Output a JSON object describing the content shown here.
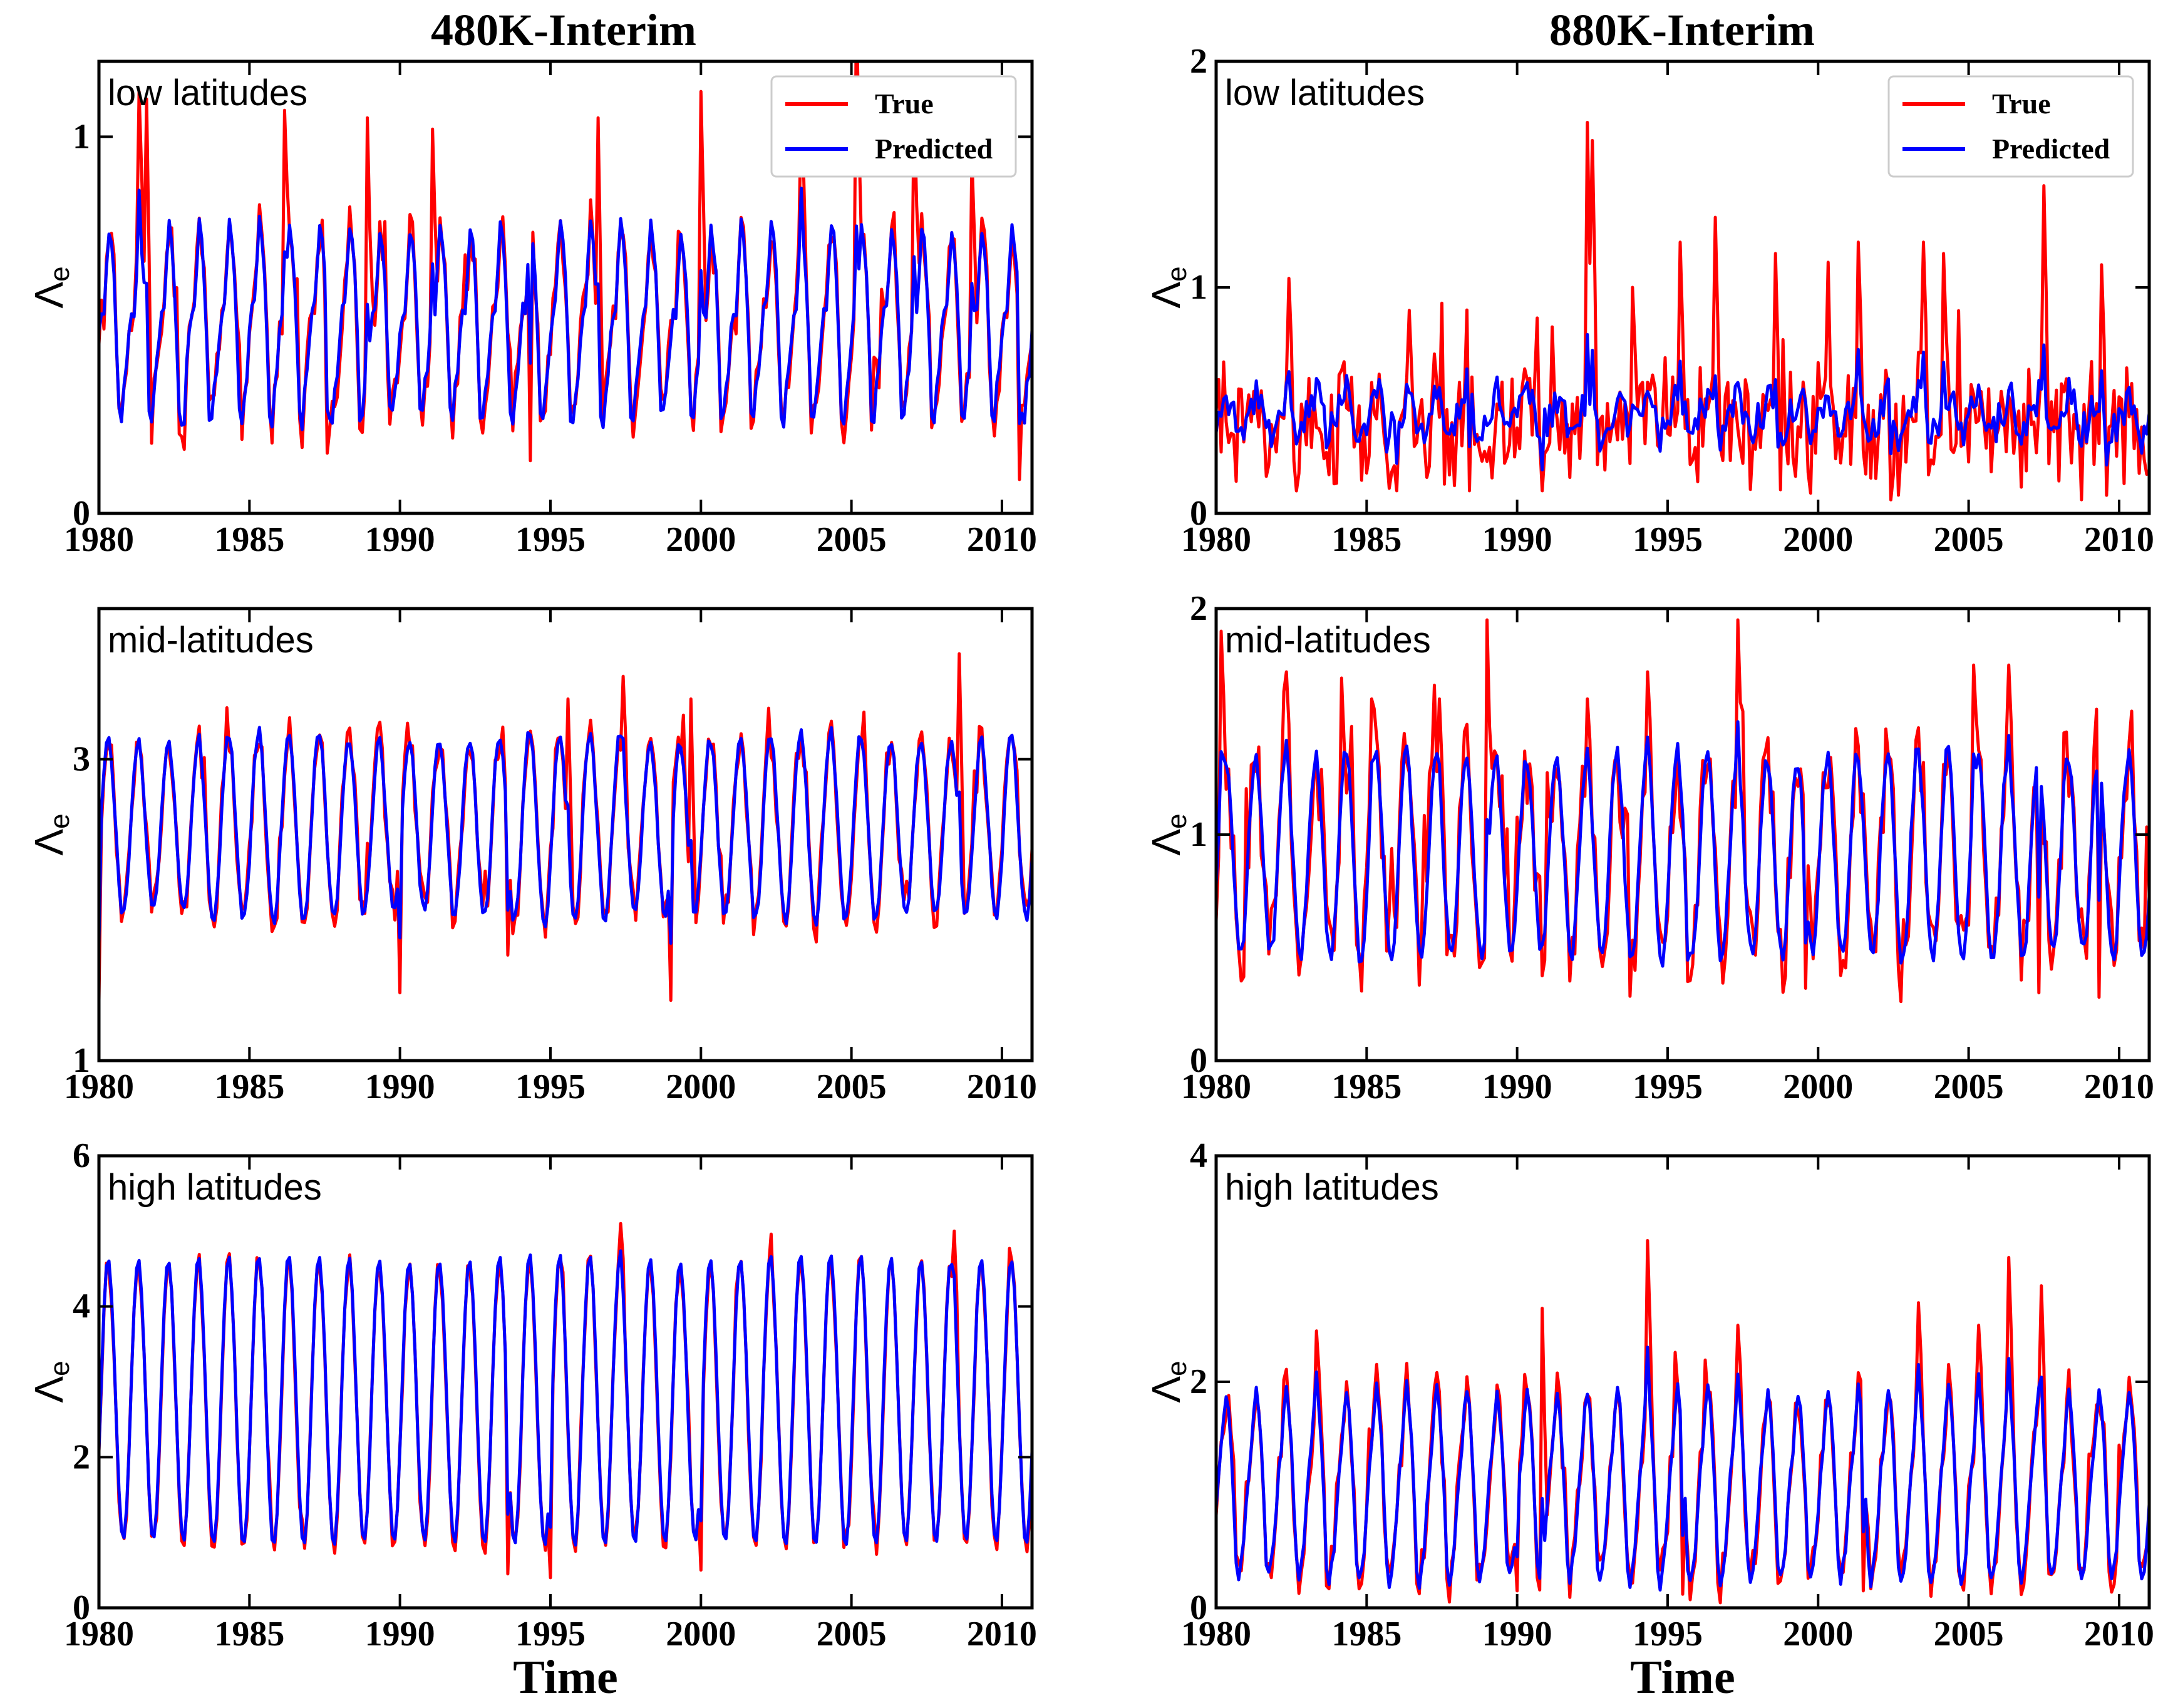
{
  "figure": {
    "columns": [
      "480K-Interim",
      "880K-Interim"
    ],
    "rows": [
      "low latitudes",
      "mid-latitudes",
      "high latitudes"
    ]
  },
  "colors": {
    "true": "#ff0000",
    "predicted": "#0000ff"
  },
  "chart_data": [
    {
      "id": "p00",
      "type": "line",
      "column_title": "480K-Interim",
      "panel_label": "low latitudes",
      "xlabel": "",
      "ylabel": "Λe",
      "ylim": [
        0,
        1.2
      ],
      "xlim": [
        1980,
        2011
      ],
      "xticks": [
        1980,
        1985,
        1990,
        1995,
        2000,
        2005,
        2010
      ],
      "yticks": [
        0,
        1
      ],
      "yticklabels": [
        "0",
        "1"
      ],
      "legend": {
        "position": "top-right",
        "entries": [
          "True",
          "Predicted"
        ]
      },
      "gen": {
        "base": 0.55,
        "amp": 0.22,
        "amp_var": 0.05,
        "pred_dip": 0.15,
        "noise": 0.06,
        "pnoise": 0.02,
        "true_offset": 0.0,
        "spikes": [
          [
            1981.3,
            1.12
          ],
          [
            1981.6,
            1.1
          ],
          [
            1986.2,
            1.07
          ],
          [
            1988.9,
            1.05
          ],
          [
            1991.1,
            1.02
          ],
          [
            1996.6,
            1.05
          ],
          [
            2000.0,
            1.12
          ],
          [
            2003.3,
            1.07
          ],
          [
            2005.2,
            1.35
          ],
          [
            2007.1,
            1.1
          ],
          [
            2009.0,
            0.95
          ]
        ],
        "dips": [
          [
            1982.8,
            0.17
          ],
          [
            1987.6,
            0.16
          ],
          [
            1994.3,
            0.14
          ],
          [
            2010.6,
            0.09
          ]
        ]
      }
    },
    {
      "id": "p01",
      "type": "line",
      "column_title": "880K-Interim",
      "panel_label": "low latitudes",
      "xlabel": "",
      "ylabel": "Λe",
      "ylim": [
        0,
        2
      ],
      "xlim": [
        1980,
        2011
      ],
      "xticks": [
        1980,
        1985,
        1990,
        1995,
        2000,
        2005,
        2010
      ],
      "yticks": [
        0,
        1,
        2
      ],
      "yticklabels": [
        "0",
        "1",
        "2"
      ],
      "legend": {
        "position": "top-right",
        "entries": [
          "True",
          "Predicted"
        ]
      },
      "gen": {
        "base": 0.45,
        "amp": 0.08,
        "amp_var": 0.04,
        "pred_dip": 0.05,
        "noise": 0.22,
        "pnoise": 0.08,
        "true_offset": -0.05,
        "spikes": [
          [
            1982.4,
            1.04
          ],
          [
            1988.3,
            0.9
          ],
          [
            1992.3,
            1.73
          ],
          [
            1992.5,
            1.65
          ],
          [
            1993.8,
            1.0
          ],
          [
            1995.4,
            1.2
          ],
          [
            1996.6,
            1.31
          ],
          [
            1998.6,
            1.15
          ],
          [
            2001.3,
            1.2
          ],
          [
            2003.5,
            1.2
          ],
          [
            2004.2,
            1.15
          ],
          [
            2007.5,
            1.45
          ],
          [
            2009.4,
            1.1
          ]
        ],
        "dips": [
          [
            1986.0,
            0.1
          ],
          [
            1988.4,
            0.1
          ],
          [
            1990.8,
            0.1
          ],
          [
            2002.4,
            0.06
          ],
          [
            2009.6,
            0.08
          ]
        ]
      }
    },
    {
      "id": "p10",
      "type": "line",
      "column_title": "480K-Interim",
      "panel_label": "mid-latitudes",
      "xlabel": "",
      "ylabel": "Λe",
      "ylim": [
        1,
        4
      ],
      "xlim": [
        1980,
        2011
      ],
      "xticks": [
        1980,
        1985,
        1990,
        1995,
        2000,
        2005,
        2010
      ],
      "yticks": [
        1,
        3
      ],
      "yticklabels": [
        "1",
        "3"
      ],
      "legend": null,
      "gen": {
        "base": 2.55,
        "amp": 0.6,
        "amp_var": 0.06,
        "pred_dip": 0.0,
        "noise": 0.12,
        "pnoise": 0.04,
        "true_offset": 0.0,
        "spikes": [
          [
            1995.6,
            3.4
          ],
          [
            1997.4,
            3.55
          ],
          [
            1999.7,
            3.4
          ],
          [
            2008.6,
            3.7
          ]
        ],
        "dips": [
          [
            1980.0,
            1.4
          ],
          [
            1990.0,
            1.45
          ],
          [
            1999.0,
            1.4
          ],
          [
            1993.6,
            1.7
          ]
        ]
      }
    },
    {
      "id": "p11",
      "type": "line",
      "column_title": "880K-Interim",
      "panel_label": "mid-latitudes",
      "xlabel": "",
      "ylabel": "Λe",
      "ylim": [
        0,
        2
      ],
      "xlim": [
        1980,
        2011
      ],
      "xticks": [
        1980,
        1985,
        1990,
        1995,
        2000,
        2005,
        2010
      ],
      "yticks": [
        0,
        1,
        2
      ],
      "yticklabels": [
        "0",
        "1",
        "2"
      ],
      "legend": null,
      "gen": {
        "base": 0.9,
        "amp": 0.45,
        "amp_var": 0.05,
        "pred_dip": 0.0,
        "noise": 0.18,
        "pnoise": 0.04,
        "true_offset": 0.0,
        "spikes": [
          [
            1980.2,
            1.9
          ],
          [
            1982.3,
            1.72
          ],
          [
            1985.2,
            1.6
          ],
          [
            1987.4,
            1.6
          ],
          [
            1989.0,
            1.95
          ],
          [
            1992.3,
            1.6
          ],
          [
            1994.3,
            1.72
          ],
          [
            1997.3,
            1.95
          ],
          [
            2005.2,
            1.75
          ],
          [
            2006.3,
            1.75
          ],
          [
            2008.2,
            1.45
          ]
        ],
        "dips": [
          [
            1995.7,
            0.35
          ],
          [
            1999.6,
            0.32
          ],
          [
            2007.3,
            0.3
          ],
          [
            2009.3,
            0.28
          ]
        ]
      }
    },
    {
      "id": "p20",
      "type": "line",
      "column_title": "480K-Interim",
      "panel_label": "high latitudes",
      "xlabel": "Time",
      "ylabel": "Λe",
      "ylim": [
        0,
        6
      ],
      "xlim": [
        1980,
        2011
      ],
      "xticks": [
        1980,
        1985,
        1990,
        1995,
        2000,
        2005,
        2010
      ],
      "yticks": [
        0,
        2,
        4,
        6
      ],
      "yticklabels": [
        "0",
        "2",
        "4",
        "6"
      ],
      "legend": null,
      "gen": {
        "base": 2.75,
        "amp": 1.9,
        "amp_var": 0.02,
        "pred_dip": 0.0,
        "noise": 0.12,
        "pnoise": 0.03,
        "true_offset": -0.05,
        "spikes": [
          [
            1997.3,
            5.1
          ],
          [
            2008.4,
            5.0
          ]
        ],
        "dips": [
          [
            1993.6,
            0.45
          ],
          [
            1995.0,
            0.4
          ],
          [
            2000.0,
            0.5
          ]
        ]
      }
    },
    {
      "id": "p21",
      "type": "line",
      "column_title": "880K-Interim",
      "panel_label": "high latitudes",
      "xlabel": "Time",
      "ylabel": "Λe",
      "ylim": [
        0,
        4
      ],
      "xlim": [
        1980,
        2011
      ],
      "xticks": [
        1980,
        1985,
        1990,
        1995,
        2000,
        2005,
        2010
      ],
      "yticks": [
        0,
        2,
        4
      ],
      "yticklabels": [
        "0",
        "2",
        "4"
      ],
      "legend": null,
      "gen": {
        "base": 1.15,
        "amp": 0.8,
        "amp_var": 0.04,
        "pred_dip": 0.25,
        "noise": 0.18,
        "pnoise": 0.05,
        "true_offset": 0.0,
        "spikes": [
          [
            1983.3,
            2.45
          ],
          [
            1990.8,
            2.65
          ],
          [
            1994.3,
            3.25
          ],
          [
            1997.3,
            2.5
          ],
          [
            2003.3,
            2.7
          ],
          [
            2005.3,
            2.5
          ],
          [
            2006.3,
            3.1
          ],
          [
            2007.4,
            2.85
          ]
        ],
        "dips": [
          [
            1990.0,
            0.15
          ],
          [
            1995.5,
            0.12
          ],
          [
            2001.5,
            0.15
          ]
        ]
      }
    }
  ]
}
